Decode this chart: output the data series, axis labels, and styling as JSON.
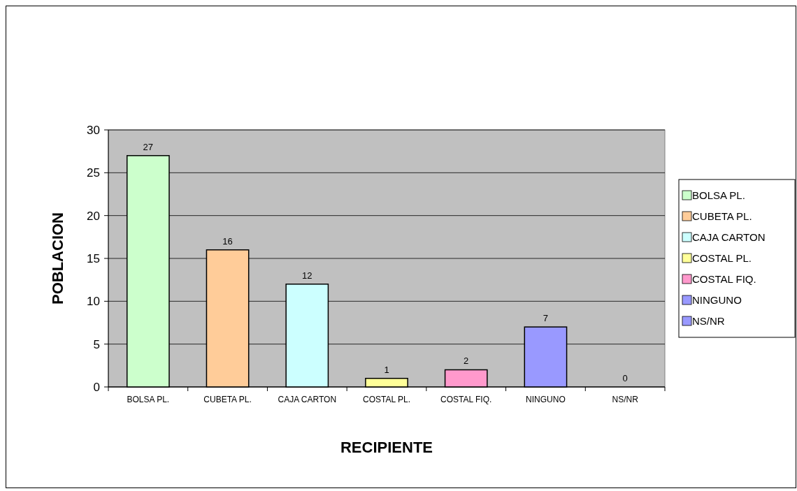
{
  "chart_data": {
    "type": "bar",
    "xlabel": "RECIPIENTE",
    "ylabel": "POBLACION",
    "categories": [
      "BOLSA PL.",
      "CUBETA PL.",
      "CAJA CARTON",
      "COSTAL PL.",
      "COSTAL FIQ.",
      "NINGUNO",
      "NS/NR"
    ],
    "series": [
      {
        "name": "BOLSA PL.",
        "color": "#ccffcc",
        "values": [
          27,
          null,
          null,
          null,
          null,
          null,
          null
        ]
      },
      {
        "name": "CUBETA PL.",
        "color": "#ffcc99",
        "values": [
          null,
          16,
          null,
          null,
          null,
          null,
          null
        ]
      },
      {
        "name": "CAJA CARTON",
        "color": "#ccffff",
        "values": [
          null,
          null,
          12,
          null,
          null,
          null,
          null
        ]
      },
      {
        "name": "COSTAL PL.",
        "color": "#ffff99",
        "values": [
          null,
          null,
          null,
          1,
          null,
          null,
          null
        ]
      },
      {
        "name": "COSTAL FIQ.",
        "color": "#ff99cc",
        "values": [
          null,
          null,
          null,
          null,
          2,
          null,
          null
        ]
      },
      {
        "name": "NINGUNO",
        "color": "#9999ff",
        "values": [
          null,
          null,
          null,
          null,
          null,
          7,
          null
        ]
      },
      {
        "name": "NS/NR",
        "color": "#9999ff",
        "values": [
          null,
          null,
          null,
          null,
          null,
          null,
          0
        ]
      }
    ],
    "ylim": [
      0,
      30
    ],
    "yticks": [
      0,
      5,
      10,
      15,
      20,
      25,
      30
    ],
    "grid": "y",
    "data_labels": true,
    "legend": "right"
  }
}
